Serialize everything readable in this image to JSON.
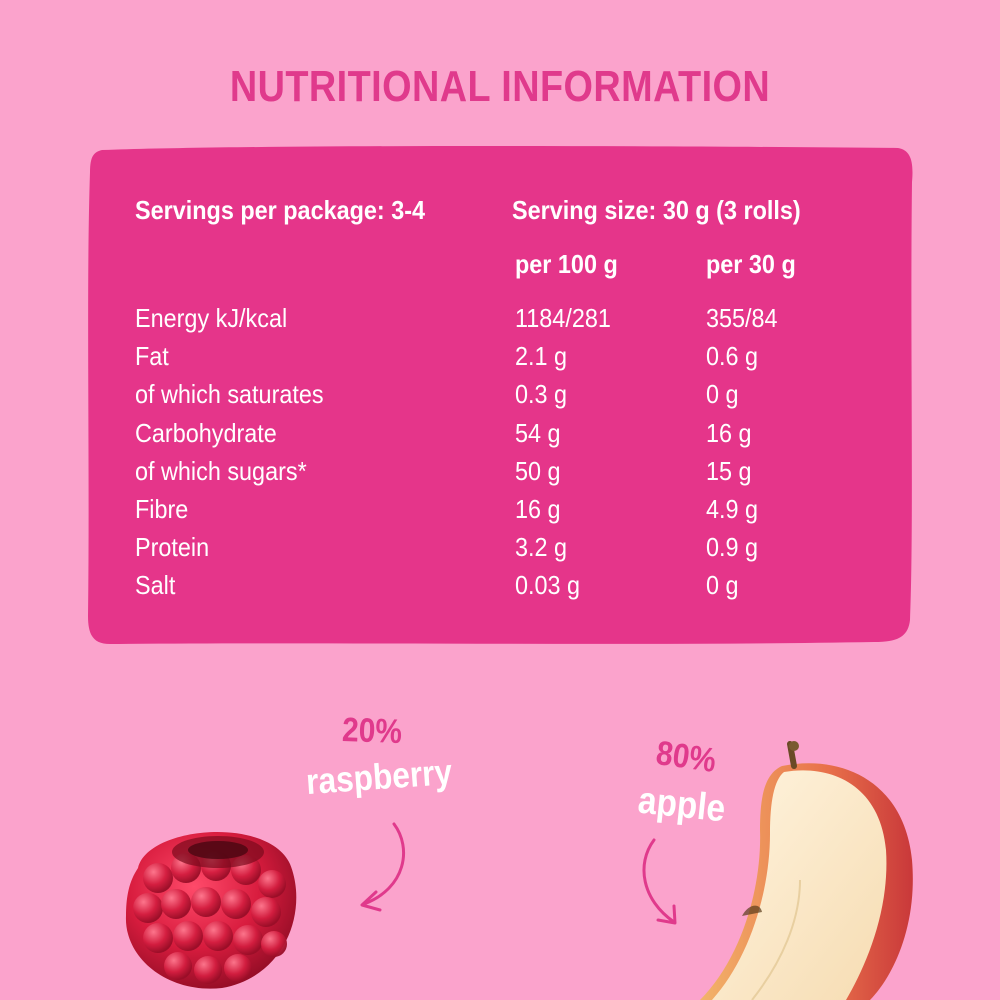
{
  "title": "NUTRITIONAL INFORMATION",
  "table": {
    "servings_per_package": "Servings per package: 3-4",
    "serving_size": "Serving size: 30 g (3 rolls)",
    "col_headers": [
      "per 100 g",
      "per 30 g"
    ],
    "rows": [
      {
        "label": "Energy kJ/kcal",
        "per100": "1184/281",
        "per30": "355/84"
      },
      {
        "label": "Fat",
        "per100": "2.1 g",
        "per30": "0.6 g"
      },
      {
        "label": "of which saturates",
        "per100": "0.3 g",
        "per30": "0 g"
      },
      {
        "label": "Carbohydrate",
        "per100": "54 g",
        "per30": "16 g"
      },
      {
        "label": "of which sugars*",
        "per100": "50 g",
        "per30": "15 g"
      },
      {
        "label": "Fibre",
        "per100": "16 g",
        "per30": "4.9 g"
      },
      {
        "label": "Protein",
        "per100": "3.2 g",
        "per30": "0.9 g"
      },
      {
        "label": "Salt",
        "per100": "0.03 g",
        "per30": "0 g"
      }
    ]
  },
  "ingredients": {
    "raspberry": {
      "percent": "20%",
      "name": "raspberry"
    },
    "apple": {
      "percent": "80%",
      "name": "apple"
    }
  },
  "colors": {
    "background": "#fba3cc",
    "card": "#e5358a",
    "accent": "#e03a8c",
    "text": "#ffffff"
  }
}
